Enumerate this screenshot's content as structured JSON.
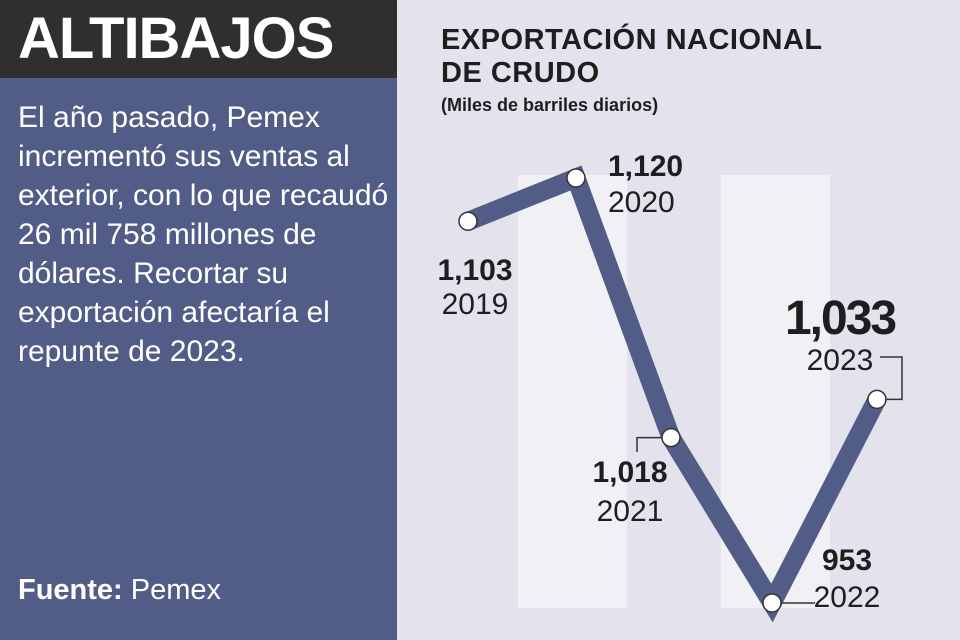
{
  "header": {
    "title": "ALTIBAJOS"
  },
  "body": {
    "text": "El año pasado, Pemex incrementó sus ventas al exterior, con lo que recaudó 26 mil 758 millones de dólares. Recortar su exportación afectaría el repunte de 2023."
  },
  "source": {
    "label": "Fuente:",
    "value": "Pemex"
  },
  "colors": {
    "left_panel": "#525d87",
    "header_bar": "#2f2f2f",
    "background": "#e4e2ec",
    "stripe": "#f1f0f5",
    "line": "#525d87"
  },
  "chart_data": {
    "type": "line",
    "title": "EXPORTACIÓN NACIONAL DE CRUDO",
    "subtitle": "(Miles de barriles diarios)",
    "x": [
      "2019",
      "2020",
      "2021",
      "2022",
      "2023"
    ],
    "values": [
      1103,
      1120,
      1018,
      953,
      1033
    ],
    "value_labels": [
      "1,103",
      "1,120",
      "1,018",
      "953",
      "1,033"
    ],
    "grid": false,
    "highlight": "2023"
  }
}
